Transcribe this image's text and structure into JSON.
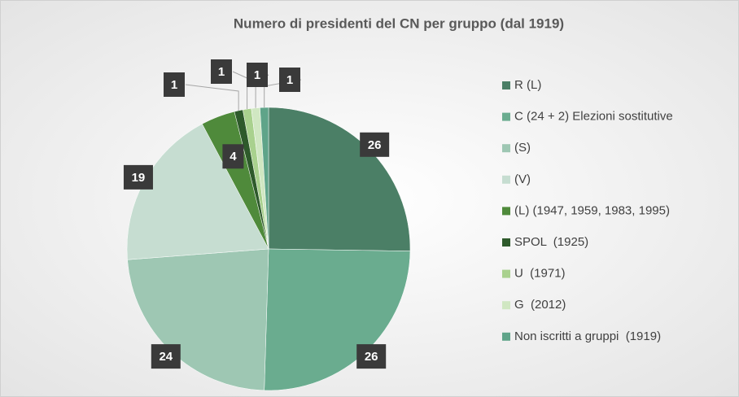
{
  "chart_data": {
    "type": "pie",
    "title": "Numero di presidenti del CN per gruppo (dal 1919)",
    "categories": [
      "R (L)",
      "C (24 + 2) Elezioni sostitutive",
      "(S)",
      "(V)",
      "(L) (1947, 1959, 1983, 1995)",
      "SPOL  (1925)",
      "U  (1971)",
      "G  (2012)",
      "Non iscritti a gruppi  (1919)"
    ],
    "values": [
      26,
      26,
      24,
      19,
      4,
      1,
      1,
      1,
      1
    ],
    "colors": [
      "#4b7f66",
      "#6aac8f",
      "#9ec7b3",
      "#c6ddd1",
      "#4f8a3b",
      "#2e5a2b",
      "#a9d18e",
      "#d0e7c2",
      "#5fa489"
    ],
    "legend": "right"
  }
}
